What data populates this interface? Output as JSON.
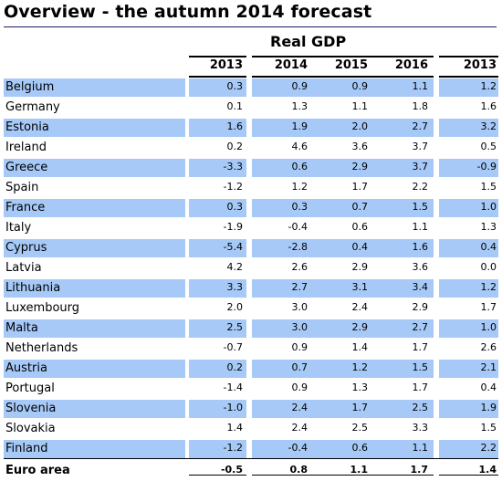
{
  "title": "Overview - the autumn 2014 forecast",
  "group_header": "Real GDP",
  "columns": [
    "2013",
    "2014",
    "2015",
    "2016",
    "2013"
  ],
  "colors": {
    "highlight_row": "#a6c9f7",
    "title_rule": "#1a1a6e"
  },
  "rows": [
    {
      "country": "Belgium",
      "values": [
        "0.3",
        "0.9",
        "0.9",
        "1.1",
        "1.2"
      ],
      "highlight": true
    },
    {
      "country": "Germany",
      "values": [
        "0.1",
        "1.3",
        "1.1",
        "1.8",
        "1.6"
      ],
      "highlight": false
    },
    {
      "country": "Estonia",
      "values": [
        "1.6",
        "1.9",
        "2.0",
        "2.7",
        "3.2"
      ],
      "highlight": true
    },
    {
      "country": "Ireland",
      "values": [
        "0.2",
        "4.6",
        "3.6",
        "3.7",
        "0.5"
      ],
      "highlight": false
    },
    {
      "country": "Greece",
      "values": [
        "-3.3",
        "0.6",
        "2.9",
        "3.7",
        "-0.9"
      ],
      "highlight": true
    },
    {
      "country": "Spain",
      "values": [
        "-1.2",
        "1.2",
        "1.7",
        "2.2",
        "1.5"
      ],
      "highlight": false
    },
    {
      "country": "France",
      "values": [
        "0.3",
        "0.3",
        "0.7",
        "1.5",
        "1.0"
      ],
      "highlight": true
    },
    {
      "country": "Italy",
      "values": [
        "-1.9",
        "-0.4",
        "0.6",
        "1.1",
        "1.3"
      ],
      "highlight": false
    },
    {
      "country": "Cyprus",
      "values": [
        "-5.4",
        "-2.8",
        "0.4",
        "1.6",
        "0.4"
      ],
      "highlight": true
    },
    {
      "country": "Latvia",
      "values": [
        "4.2",
        "2.6",
        "2.9",
        "3.6",
        "0.0"
      ],
      "highlight": false
    },
    {
      "country": "Lithuania",
      "values": [
        "3.3",
        "2.7",
        "3.1",
        "3.4",
        "1.2"
      ],
      "highlight": true
    },
    {
      "country": "Luxembourg",
      "values": [
        "2.0",
        "3.0",
        "2.4",
        "2.9",
        "1.7"
      ],
      "highlight": false
    },
    {
      "country": "Malta",
      "values": [
        "2.5",
        "3.0",
        "2.9",
        "2.7",
        "1.0"
      ],
      "highlight": true
    },
    {
      "country": "Netherlands",
      "values": [
        "-0.7",
        "0.9",
        "1.4",
        "1.7",
        "2.6"
      ],
      "highlight": false
    },
    {
      "country": "Austria",
      "values": [
        "0.2",
        "0.7",
        "1.2",
        "1.5",
        "2.1"
      ],
      "highlight": true
    },
    {
      "country": "Portugal",
      "values": [
        "-1.4",
        "0.9",
        "1.3",
        "1.7",
        "0.4"
      ],
      "highlight": false
    },
    {
      "country": "Slovenia",
      "values": [
        "-1.0",
        "2.4",
        "1.7",
        "2.5",
        "1.9"
      ],
      "highlight": true
    },
    {
      "country": "Slovakia",
      "values": [
        "1.4",
        "2.4",
        "2.5",
        "3.3",
        "1.5"
      ],
      "highlight": false
    },
    {
      "country": "Finland",
      "values": [
        "-1.2",
        "-0.4",
        "0.6",
        "1.1",
        "2.2"
      ],
      "highlight": true
    }
  ],
  "total": {
    "country": "Euro area",
    "values": [
      "-0.5",
      "0.8",
      "1.1",
      "1.7",
      "1.4"
    ]
  }
}
